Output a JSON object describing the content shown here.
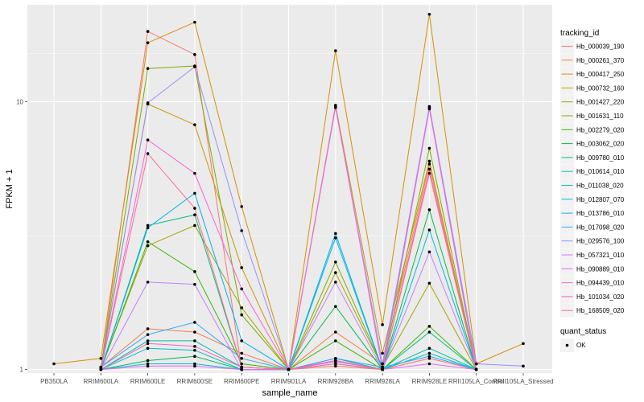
{
  "chart_data": {
    "type": "line",
    "y_scale": "log10",
    "ylim": [
      0.97,
      23
    ],
    "xlabel": "sample_name",
    "ylabel": "FPKM + 1",
    "grid": true,
    "legend_position": "right",
    "categories": [
      "PB350LA",
      "RRIM600LA",
      "RRIM600LE",
      "RRIM600SE",
      "RRIM600PE",
      "RRIM901LA",
      "RRIM928BA",
      "RRIM928LA",
      "RRIM928LE",
      "RRII105LA_Control",
      "RRII105LA_Stressed"
    ],
    "y_ticks": [
      1,
      10
    ],
    "y_tick_labels": [
      "1",
      "10"
    ],
    "color_legend_title": "tracking_id",
    "shape_legend_title": "quant_status",
    "point_label": "OK",
    "series": [
      {
        "name": "Hb_000039_190",
        "color": "#F8766D",
        "values": [
          null,
          1.01,
          18.3,
          15.0,
          1.0,
          1.0,
          1.03,
          1.0,
          1.1,
          1.0,
          null
        ]
      },
      {
        "name": "Hb_000261_370",
        "color": "#F07F4E",
        "values": [
          null,
          1.02,
          1.42,
          1.38,
          1.15,
          1.0,
          1.38,
          1.05,
          5.85,
          1.0,
          null
        ]
      },
      {
        "name": "Hb_000417_250",
        "color": "#D89000",
        "values": [
          1.05,
          1.1,
          16.6,
          19.8,
          4.06,
          1.0,
          15.5,
          1.47,
          21.2,
          1.05,
          1.25
        ]
      },
      {
        "name": "Hb_000732_160",
        "color": "#C99800",
        "values": [
          null,
          1.02,
          9.8,
          8.2,
          2.4,
          1.0,
          9.7,
          1.15,
          6.0,
          1.0,
          null
        ]
      },
      {
        "name": "Hb_001427_220",
        "color": "#A3A500",
        "values": [
          null,
          1.01,
          2.9,
          3.45,
          1.7,
          1.0,
          2.3,
          1.02,
          2.1,
          1.0,
          null
        ]
      },
      {
        "name": "Hb_001631_110",
        "color": "#7CAE00",
        "values": [
          null,
          1.01,
          13.3,
          13.6,
          1.6,
          1.0,
          2.52,
          1.02,
          6.7,
          1.0,
          null
        ]
      },
      {
        "name": "Hb_002279_020",
        "color": "#39B600",
        "values": [
          null,
          1.0,
          3.0,
          2.32,
          1.05,
          1.0,
          1.28,
          1.0,
          1.45,
          1.0,
          null
        ]
      },
      {
        "name": "Hb_003062_020",
        "color": "#00BB4E",
        "values": [
          null,
          1.0,
          1.08,
          1.12,
          1.0,
          1.0,
          1.72,
          1.0,
          3.95,
          1.0,
          null
        ]
      },
      {
        "name": "Hb_009780_010",
        "color": "#00BF7D",
        "values": [
          null,
          1.0,
          3.45,
          3.78,
          1.02,
          1.0,
          1.1,
          1.0,
          1.38,
          1.0,
          null
        ]
      },
      {
        "name": "Hb_010614_010",
        "color": "#00C1A3",
        "values": [
          null,
          1.0,
          1.28,
          1.28,
          1.02,
          1.0,
          1.05,
          1.0,
          1.2,
          1.0,
          null
        ]
      },
      {
        "name": "Hb_011038_020",
        "color": "#00BFC4",
        "values": [
          null,
          1.0,
          1.2,
          1.18,
          1.0,
          1.0,
          1.08,
          1.0,
          1.15,
          1.0,
          null
        ]
      },
      {
        "name": "Hb_012807_070",
        "color": "#00BAE0",
        "values": [
          null,
          1.0,
          1.05,
          1.05,
          1.0,
          1.0,
          3.1,
          1.0,
          3.32,
          1.0,
          null
        ]
      },
      {
        "name": "Hb_013786_010",
        "color": "#00B0F6",
        "values": [
          null,
          1.0,
          3.38,
          4.55,
          1.28,
          1.0,
          3.22,
          1.0,
          9.5,
          1.0,
          null
        ]
      },
      {
        "name": "Hb_017098_020",
        "color": "#35A2FF",
        "values": [
          null,
          1.02,
          1.35,
          1.5,
          1.1,
          1.0,
          1.1,
          1.02,
          1.12,
          1.0,
          null
        ]
      },
      {
        "name": "Hb_029576_100",
        "color": "#9590FF",
        "values": [
          null,
          1.0,
          9.9,
          13.5,
          3.3,
          1.0,
          9.5,
          1.05,
          9.6,
          1.05,
          1.03
        ]
      },
      {
        "name": "Hb_057321_010",
        "color": "#C77CFF",
        "values": [
          null,
          1.0,
          2.12,
          2.08,
          1.0,
          1.0,
          2.12,
          1.0,
          2.75,
          1.0,
          null
        ]
      },
      {
        "name": "Hb_090889_010",
        "color": "#E76BF3",
        "values": [
          null,
          1.0,
          1.03,
          1.03,
          1.0,
          1.0,
          1.07,
          1.0,
          1.05,
          1.0,
          null
        ]
      },
      {
        "name": "Hb_094439_010",
        "color": "#FA62DB",
        "values": [
          null,
          1.0,
          7.2,
          5.4,
          2.0,
          1.0,
          9.6,
          1.0,
          9.4,
          1.0,
          null
        ]
      },
      {
        "name": "Hb_101034_020",
        "color": "#FF62BC",
        "values": [
          null,
          1.0,
          1.25,
          1.22,
          1.02,
          1.0,
          1.08,
          1.0,
          5.6,
          1.0,
          null
        ]
      },
      {
        "name": "Hb_168509_020",
        "color": "#FF6C91",
        "values": [
          null,
          1.0,
          6.4,
          4.0,
          1.02,
          1.0,
          1.05,
          1.0,
          5.4,
          1.0,
          null
        ]
      }
    ]
  }
}
